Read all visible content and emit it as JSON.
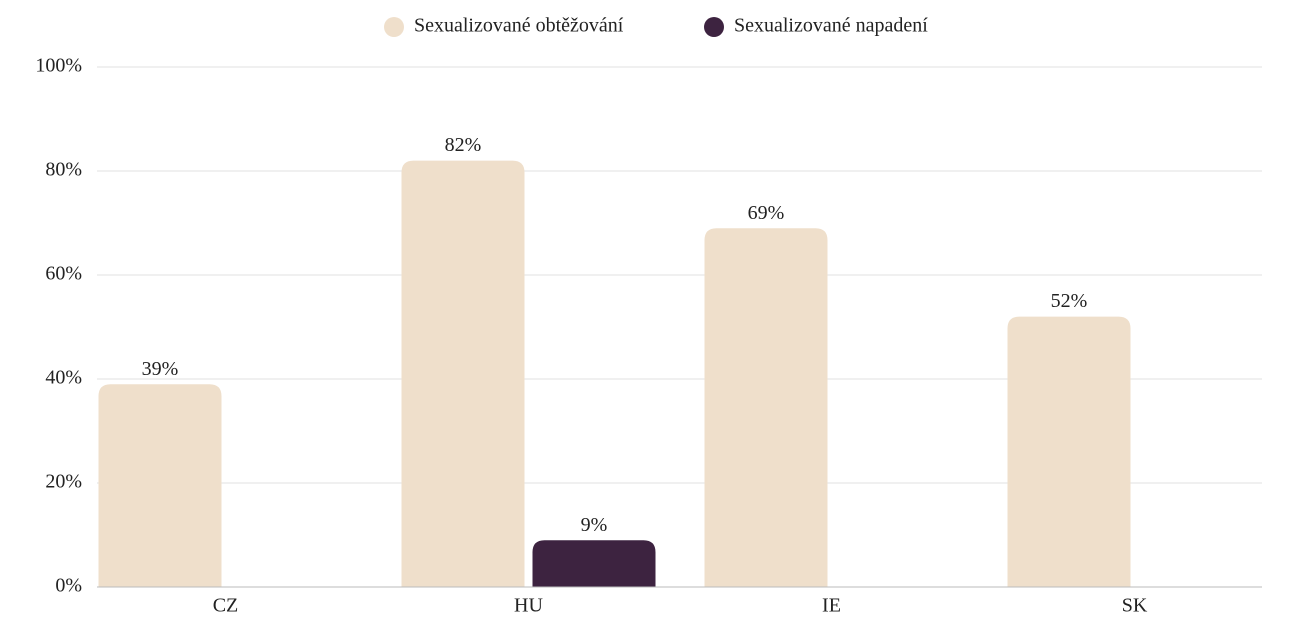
{
  "chart_data": {
    "type": "bar",
    "categories": [
      "CZ",
      "HU",
      "IE",
      "SK"
    ],
    "series": [
      {
        "name": "Sexualizované obtěžování",
        "color": "#efdfcb",
        "values": [
          39,
          82,
          69,
          52
        ],
        "value_labels": [
          "39%",
          "82%",
          "69%",
          "52%"
        ]
      },
      {
        "name": "Sexualizované napadení",
        "color": "#3d2340",
        "values": [
          null,
          9,
          null,
          null
        ],
        "value_labels": [
          null,
          "9%",
          null,
          null
        ]
      }
    ],
    "ylim": [
      0,
      100
    ],
    "yticks": [
      {
        "value": 0,
        "label": "0%"
      },
      {
        "value": 20,
        "label": "20%"
      },
      {
        "value": 40,
        "label": "40%"
      },
      {
        "value": 60,
        "label": "60%"
      },
      {
        "value": 80,
        "label": "80%"
      },
      {
        "value": 100,
        "label": "100%"
      }
    ],
    "grid": true,
    "legend": "top"
  }
}
